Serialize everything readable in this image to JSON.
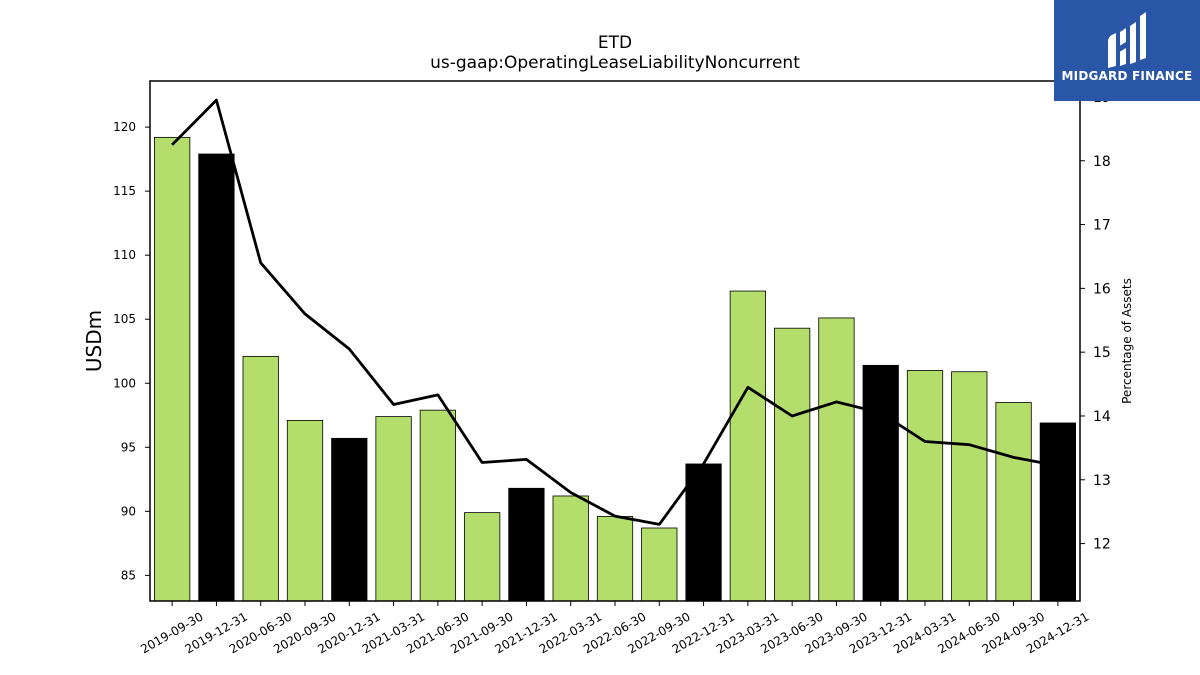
{
  "chart_data": {
    "type": "bar",
    "title": "ETD",
    "subtitle": "us-gaap:OperatingLeaseLiabilityNoncurrent",
    "ylabel": "USDm",
    "y2label": "Percentage of Assets",
    "ylim": [
      83,
      123.6
    ],
    "y2lim": [
      11.1,
      19.25
    ],
    "yticks": [
      85,
      90,
      95,
      100,
      105,
      110,
      115,
      120
    ],
    "y2ticks": [
      12,
      13,
      14,
      15,
      16,
      17,
      18,
      19
    ],
    "categories": [
      "2019-09-30",
      "2019-12-31",
      "2020-06-30",
      "2020-09-30",
      "2020-12-31",
      "2021-03-31",
      "2021-06-30",
      "2021-09-30",
      "2021-12-31",
      "2022-03-31",
      "2022-06-30",
      "2022-09-30",
      "2022-12-31",
      "2023-03-31",
      "2023-06-30",
      "2023-09-30",
      "2023-12-31",
      "2024-03-31",
      "2024-06-30",
      "2024-09-30",
      "2024-12-31"
    ],
    "series": [
      {
        "kind": "bar",
        "values": [
          119.2,
          117.9,
          102.1,
          97.1,
          95.7,
          97.4,
          97.9,
          89.9,
          91.8,
          91.2,
          89.6,
          88.7,
          93.7,
          107.2,
          104.3,
          105.1,
          101.4,
          101.0,
          100.9,
          98.5,
          96.9
        ],
        "colors": [
          "#b3de6b",
          "#000000",
          "#b3de6b",
          "#b3de6b",
          "#000000",
          "#b3de6b",
          "#b3de6b",
          "#b3de6b",
          "#000000",
          "#b3de6b",
          "#b3de6b",
          "#b3de6b",
          "#000000",
          "#b3de6b",
          "#b3de6b",
          "#b3de6b",
          "#000000",
          "#b3de6b",
          "#b3de6b",
          "#b3de6b",
          "#000000"
        ]
      },
      {
        "kind": "line",
        "axis": "right",
        "color": "#000000",
        "values": [
          18.25,
          18.95,
          16.4,
          15.6,
          15.05,
          14.18,
          14.33,
          13.27,
          13.32,
          12.8,
          12.43,
          12.3,
          13.25,
          14.45,
          14.0,
          14.22,
          14.05,
          13.6,
          13.55,
          13.35,
          13.22
        ]
      }
    ],
    "grid": false
  },
  "logo": {
    "text": "MIDGARD FINANCE",
    "background": "#2a56a8"
  }
}
